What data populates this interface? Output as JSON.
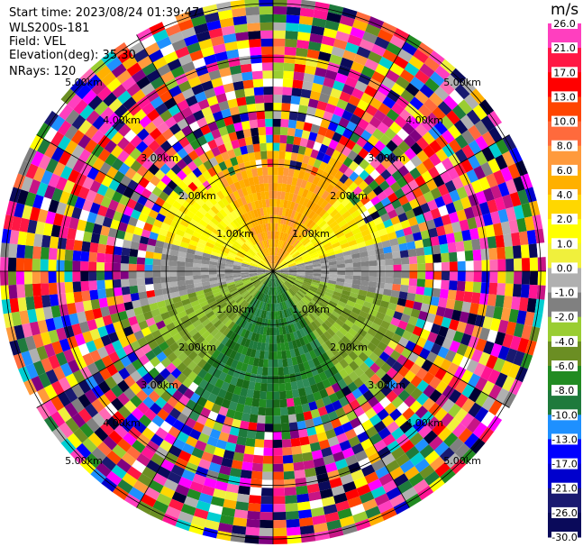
{
  "header": {
    "start_time": "Start time: 2023/08/24 01:39:47",
    "instrument": "WLS200s-181",
    "field": "Field: VEL",
    "elevation": "Elevation(deg): 35.30",
    "nrays": "NRays: 120"
  },
  "colorbar": {
    "unit": "m/s",
    "ticks": [
      "26.0",
      "21.0",
      "17.0",
      "13.0",
      "10.0",
      "8.0",
      "6.0",
      "4.0",
      "2.0",
      "1.0",
      "0.0",
      "-1.0",
      "-2.0",
      "-4.0",
      "-6.0",
      "-8.0",
      "-10.0",
      "-13.0",
      "-17.0",
      "-21.0",
      "-26.0",
      "-30.0"
    ],
    "colors": [
      "#ff3fbf",
      "#ff1744",
      "#ff0000",
      "#ff4500",
      "#ff6a3c",
      "#ff9a3c",
      "#ffb000",
      "#ffd700",
      "#ffff00",
      "#f0f03c",
      "#b0b0b0",
      "#808080",
      "#9acd32",
      "#6b8e23",
      "#228b22",
      "#1e7a3c",
      "#1e90ff",
      "#0000ff",
      "#0000cd",
      "#191970",
      "#0a0a5a",
      "#000033"
    ]
  },
  "chart_data": {
    "type": "heatmap",
    "projection": "polar-ppi",
    "field": "VEL",
    "units": "m/s",
    "nrays": 120,
    "range_rings_km": [
      1.0,
      2.0,
      3.0,
      4.0,
      5.0
    ],
    "ring_labels": [
      "1.00km",
      "2.00km",
      "3.00km",
      "4.00km",
      "5.00km"
    ],
    "max_range_km": 5.1,
    "color_limits": [
      -30.0,
      26.0
    ]
  }
}
